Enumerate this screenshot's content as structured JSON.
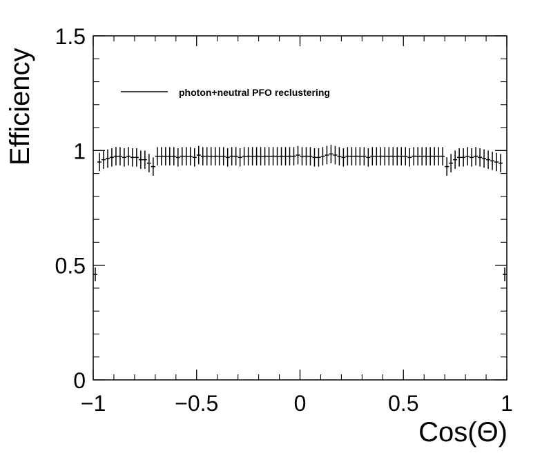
{
  "chart_data": {
    "type": "scatter",
    "title": "",
    "xlabel": "Cos(Θ)",
    "ylabel": "Efficiency",
    "xlim": [
      -1,
      1
    ],
    "ylim": [
      0,
      1.5
    ],
    "x_ticks": [
      -1,
      -0.5,
      0,
      0.5,
      1
    ],
    "x_tick_labels": [
      "−1",
      "−0.5",
      "0",
      "0.5",
      "1"
    ],
    "y_ticks": [
      0,
      0.5,
      1,
      1.5
    ],
    "y_tick_labels": [
      "0",
      "0.5",
      "1",
      "1.5"
    ],
    "grid": false,
    "legend_position": "top-left",
    "series": [
      {
        "name": "photon+neutral PFO reclustering",
        "color": "#000000",
        "bin_width": 0.02,
        "x": [
          -0.99,
          -0.97,
          -0.95,
          -0.93,
          -0.91,
          -0.89,
          -0.87,
          -0.85,
          -0.83,
          -0.81,
          -0.79,
          -0.77,
          -0.75,
          -0.73,
          -0.71,
          -0.69,
          -0.67,
          -0.65,
          -0.63,
          -0.61,
          -0.59,
          -0.57,
          -0.55,
          -0.53,
          -0.51,
          -0.49,
          -0.47,
          -0.45,
          -0.43,
          -0.41,
          -0.39,
          -0.37,
          -0.35,
          -0.33,
          -0.31,
          -0.29,
          -0.27,
          -0.25,
          -0.23,
          -0.21,
          -0.19,
          -0.17,
          -0.15,
          -0.13,
          -0.11,
          -0.09,
          -0.07,
          -0.05,
          -0.03,
          -0.01,
          0.01,
          0.03,
          0.05,
          0.07,
          0.09,
          0.11,
          0.13,
          0.15,
          0.17,
          0.19,
          0.21,
          0.23,
          0.25,
          0.27,
          0.29,
          0.31,
          0.33,
          0.35,
          0.37,
          0.39,
          0.41,
          0.43,
          0.45,
          0.47,
          0.49,
          0.51,
          0.53,
          0.55,
          0.57,
          0.59,
          0.61,
          0.63,
          0.65,
          0.67,
          0.69,
          0.71,
          0.73,
          0.75,
          0.77,
          0.79,
          0.81,
          0.83,
          0.85,
          0.87,
          0.89,
          0.91,
          0.93,
          0.95,
          0.97,
          0.99
        ],
        "y": [
          0.46,
          0.95,
          0.96,
          0.965,
          0.97,
          0.975,
          0.975,
          0.97,
          0.975,
          0.97,
          0.97,
          0.96,
          0.96,
          0.945,
          0.93,
          0.975,
          0.975,
          0.975,
          0.975,
          0.975,
          0.97,
          0.975,
          0.975,
          0.975,
          0.97,
          0.98,
          0.975,
          0.975,
          0.975,
          0.975,
          0.975,
          0.975,
          0.97,
          0.975,
          0.975,
          0.97,
          0.975,
          0.975,
          0.975,
          0.975,
          0.975,
          0.975,
          0.975,
          0.975,
          0.975,
          0.975,
          0.975,
          0.975,
          0.975,
          0.98,
          0.975,
          0.975,
          0.975,
          0.97,
          0.97,
          0.975,
          0.98,
          0.985,
          0.98,
          0.975,
          0.97,
          0.975,
          0.975,
          0.975,
          0.975,
          0.975,
          0.97,
          0.975,
          0.975,
          0.975,
          0.975,
          0.975,
          0.975,
          0.975,
          0.975,
          0.975,
          0.97,
          0.975,
          0.975,
          0.975,
          0.975,
          0.975,
          0.975,
          0.975,
          0.975,
          0.93,
          0.945,
          0.96,
          0.97,
          0.97,
          0.975,
          0.97,
          0.975,
          0.97,
          0.965,
          0.96,
          0.955,
          0.95,
          0.945,
          0.46
        ],
        "yerr": [
          0.03,
          0.04,
          0.04,
          0.04,
          0.04,
          0.04,
          0.04,
          0.04,
          0.04,
          0.04,
          0.04,
          0.04,
          0.04,
          0.04,
          0.04,
          0.04,
          0.04,
          0.04,
          0.04,
          0.04,
          0.04,
          0.04,
          0.04,
          0.04,
          0.04,
          0.04,
          0.04,
          0.04,
          0.04,
          0.04,
          0.04,
          0.04,
          0.04,
          0.04,
          0.04,
          0.04,
          0.04,
          0.04,
          0.04,
          0.04,
          0.04,
          0.04,
          0.04,
          0.04,
          0.04,
          0.04,
          0.04,
          0.04,
          0.04,
          0.04,
          0.04,
          0.04,
          0.04,
          0.04,
          0.04,
          0.04,
          0.04,
          0.04,
          0.04,
          0.04,
          0.04,
          0.04,
          0.04,
          0.04,
          0.04,
          0.04,
          0.04,
          0.04,
          0.04,
          0.04,
          0.04,
          0.04,
          0.04,
          0.04,
          0.04,
          0.04,
          0.04,
          0.04,
          0.04,
          0.04,
          0.04,
          0.04,
          0.04,
          0.04,
          0.04,
          0.04,
          0.04,
          0.04,
          0.04,
          0.04,
          0.04,
          0.04,
          0.04,
          0.04,
          0.04,
          0.04,
          0.04,
          0.04,
          0.04,
          0.03
        ]
      }
    ]
  }
}
